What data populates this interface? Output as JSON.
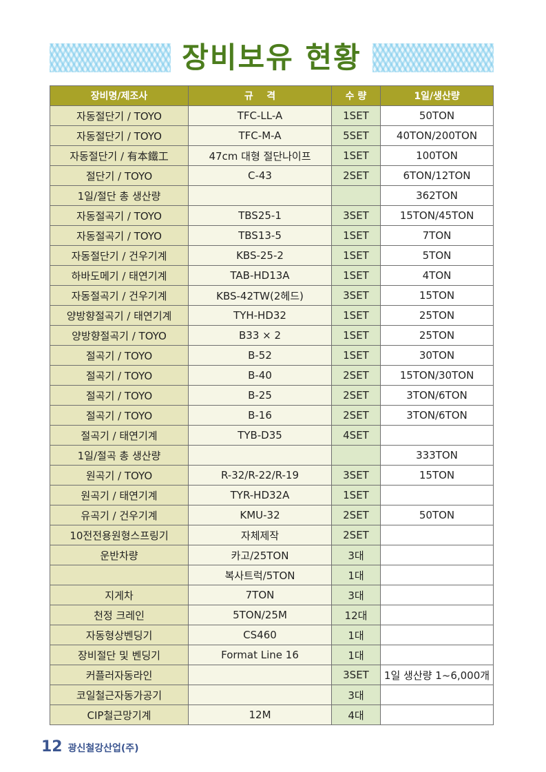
{
  "title": "장비보유 현황",
  "table": {
    "headers": [
      "장비명/제조사",
      "규    격",
      "수 량",
      "1일/생산량"
    ],
    "rows": [
      [
        "자동절단기 / TOYO",
        "TFC-LL-A",
        "1SET",
        "50TON"
      ],
      [
        "자동절단기 / TOYO",
        "TFC-M-A",
        "5SET",
        "40TON/200TON"
      ],
      [
        "자동절단기 / 有本鐵工",
        "47cm 대형 절단나이프",
        "1SET",
        "100TON"
      ],
      [
        "절단기 / TOYO",
        "C-43",
        "2SET",
        "6TON/12TON"
      ],
      [
        "1일/절단 총 생산량",
        "",
        "",
        "362TON"
      ],
      [
        "자동절곡기 / TOYO",
        "TBS25-1",
        "3SET",
        "15TON/45TON"
      ],
      [
        "자동절곡기 / TOYO",
        "TBS13-5",
        "1SET",
        "7TON"
      ],
      [
        "자동절단기 / 건우기계",
        "KBS-25-2",
        "1SET",
        "5TON"
      ],
      [
        "하바도메기 / 태연기계",
        "TAB-HD13A",
        "1SET",
        "4TON"
      ],
      [
        "자동절곡기 / 건우기계",
        "KBS-42TW(2헤드)",
        "3SET",
        "15TON"
      ],
      [
        "양방향절곡기 / 태연기계",
        "TYH-HD32",
        "1SET",
        "25TON"
      ],
      [
        "양방향절곡기 / TOYO",
        "B33 × 2",
        "1SET",
        "25TON"
      ],
      [
        "절곡기 / TOYO",
        "B-52",
        "1SET",
        "30TON"
      ],
      [
        "절곡기 / TOYO",
        "B-40",
        "2SET",
        "15TON/30TON"
      ],
      [
        "절곡기 / TOYO",
        "B-25",
        "2SET",
        "3TON/6TON"
      ],
      [
        "절곡기 / TOYO",
        "B-16",
        "2SET",
        "3TON/6TON"
      ],
      [
        "절곡기 / 태연기계",
        "TYB-D35",
        "4SET",
        ""
      ],
      [
        "1일/절곡 총 생산량",
        "",
        "",
        "333TON"
      ],
      [
        "원곡기 / TOYO",
        "R-32/R-22/R-19",
        "3SET",
        "15TON"
      ],
      [
        "원곡기 / 태연기계",
        "TYR-HD32A",
        "1SET",
        ""
      ],
      [
        "유곡기 / 건우기계",
        "KMU-32",
        "2SET",
        "50TON"
      ],
      [
        "10전전용원형스프링기",
        "자체제작",
        "2SET",
        ""
      ],
      [
        "운반차량",
        "카고/25TON",
        "3대",
        ""
      ],
      [
        "",
        "복사트럭/5TON",
        "1대",
        ""
      ],
      [
        "지게차",
        "7TON",
        "3대",
        ""
      ],
      [
        "천정 크레인",
        "5TON/25M",
        "12대",
        ""
      ],
      [
        "자동형상벤딩기",
        "CS460",
        "1대",
        ""
      ],
      [
        "장비절단 및 벤딩기",
        "Format Line 16",
        "1대",
        ""
      ],
      [
        "커플러자동라인",
        "",
        "3SET",
        "1일 생산량 1~6,000개"
      ],
      [
        "코일철근자동가공기",
        "",
        "3대",
        ""
      ],
      [
        "CIP철근망기계",
        "12M",
        "4대",
        ""
      ]
    ]
  },
  "footer": {
    "page_number": "12",
    "company": "광신철강산업(주)"
  }
}
